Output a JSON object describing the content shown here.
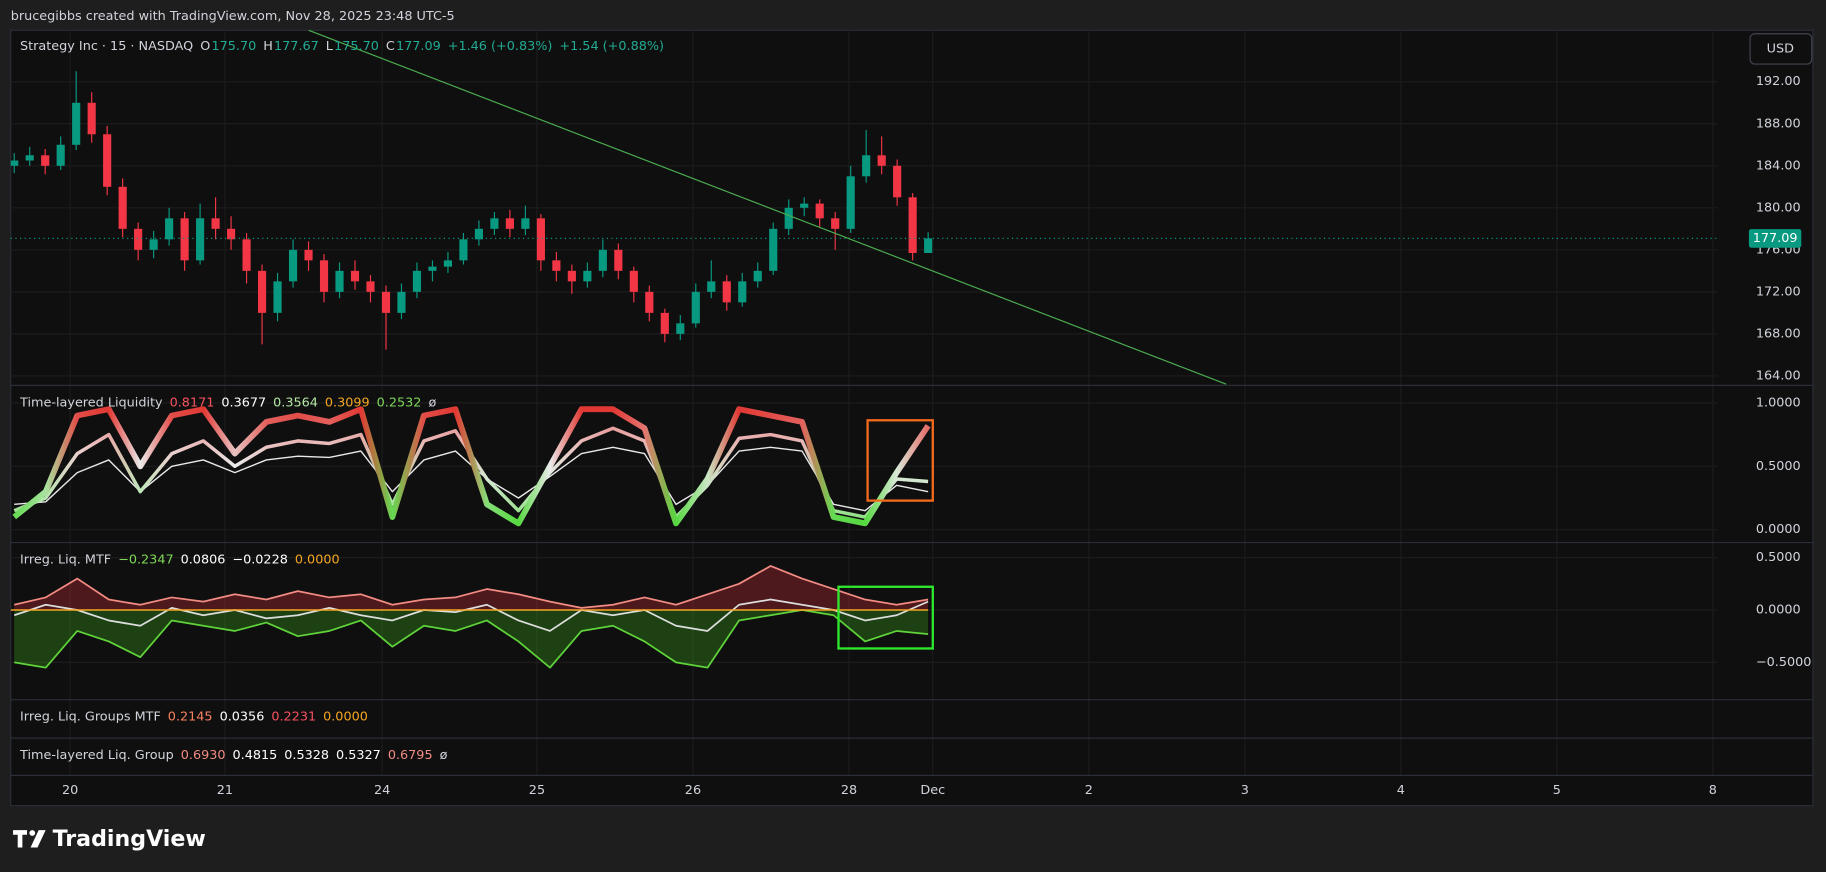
{
  "header": {
    "attribution": "brucegibbs created with TradingView.com, Nov 28, 2025 23:48 UTC-5"
  },
  "currency": "USD",
  "brand": "TradingView",
  "x_axis": {
    "labels": [
      "20",
      "21",
      "24",
      "25",
      "26",
      "28",
      "Dec",
      "2",
      "3",
      "4",
      "5",
      "8"
    ]
  },
  "chart_data": [
    {
      "type": "candlestick",
      "title": "Strategy Inc · 15 · NASDAQ",
      "ohlc_legend": [
        {
          "key": "O",
          "value": "175.70"
        },
        {
          "key": "H",
          "value": "177.67"
        },
        {
          "key": "L",
          "value": "175.70"
        },
        {
          "key": "C",
          "value": "177.09"
        }
      ],
      "change": [
        "+1.46 (+0.83%)",
        "+1.54 (+0.88%)"
      ],
      "last_price_label": "177.09",
      "up_color": "#089981",
      "down_color": "#f23645",
      "open": [
        184,
        184.5,
        185,
        184,
        186,
        190,
        187,
        182,
        178,
        176,
        177,
        179,
        175,
        179,
        178,
        177,
        174,
        170,
        173,
        176,
        175,
        172,
        174,
        173,
        172,
        170,
        172,
        174,
        174.4,
        175,
        177,
        178,
        179,
        178,
        179,
        175,
        174,
        173,
        174,
        176,
        174,
        172,
        170,
        168,
        169,
        172,
        173,
        171,
        173,
        174,
        178,
        180,
        180.4,
        179,
        178,
        183,
        185,
        184,
        181,
        175.7
      ],
      "high": [
        185.2,
        185.8,
        185.6,
        186.8,
        193,
        191,
        187.8,
        182.8,
        178.6,
        177.8,
        180,
        179.6,
        180.4,
        181,
        179.2,
        177.6,
        174.6,
        173.8,
        177,
        176.8,
        175.6,
        174.8,
        175,
        173.6,
        172.6,
        172.8,
        174.8,
        175,
        175.8,
        177.6,
        178.8,
        179.6,
        179.8,
        180.2,
        179.4,
        175.8,
        174.6,
        174.8,
        177,
        176.6,
        174.4,
        172.6,
        170.4,
        169.8,
        172.8,
        175,
        173.6,
        173.8,
        174.8,
        178.6,
        180.8,
        181,
        180.8,
        179.6,
        184,
        187.4,
        186.8,
        184.6,
        181.4,
        177.67
      ],
      "low": [
        183.3,
        184,
        183.2,
        183.6,
        185.5,
        186.2,
        181.2,
        177.2,
        175,
        175.2,
        176.4,
        174,
        174.6,
        177,
        176,
        172.8,
        167,
        169.2,
        172.4,
        174,
        171,
        171.4,
        172.2,
        171,
        166.5,
        169.4,
        171.4,
        173,
        173.8,
        174.6,
        176.4,
        177.4,
        177.2,
        177.4,
        174,
        173,
        171.8,
        172.4,
        173.4,
        173.2,
        171,
        169.2,
        167.2,
        167.4,
        168.6,
        171.4,
        170.2,
        170.6,
        172.4,
        173.6,
        177.4,
        179.2,
        178.2,
        176,
        177.6,
        182.4,
        183.2,
        180.2,
        175,
        175.7
      ],
      "close": [
        184.5,
        185,
        184,
        186,
        190,
        187,
        182,
        178,
        176,
        177,
        179,
        175,
        179,
        178,
        177,
        174,
        170,
        173,
        176,
        175,
        172,
        174,
        173,
        172,
        170,
        172,
        174,
        174.4,
        175,
        177,
        178,
        179,
        178,
        179,
        175,
        174,
        173,
        174,
        176,
        174,
        172,
        170,
        168,
        169,
        172,
        173,
        171,
        173,
        174,
        178,
        180,
        180.4,
        179,
        178,
        183,
        185,
        184,
        181,
        175.7,
        177.09
      ],
      "ylim": [
        163.1,
        196.9
      ],
      "yticks": [
        {
          "value": 192,
          "label": "192.00"
        },
        {
          "value": 188,
          "label": "188.00"
        },
        {
          "value": 184,
          "label": "184.00"
        },
        {
          "value": 180,
          "label": "180.00"
        },
        {
          "value": 176,
          "label": "176.00"
        },
        {
          "value": 172,
          "label": "172.00"
        },
        {
          "value": 168,
          "label": "168.00"
        },
        {
          "value": 164,
          "label": "164.00"
        }
      ]
    },
    {
      "type": "line",
      "title": "Time-layered Liquidity",
      "legend_values": [
        {
          "value": "0.8171",
          "color": "#f7525f"
        },
        {
          "value": "0.3677",
          "color": "#ffffff"
        },
        {
          "value": "0.3564",
          "color": "#b5e8a5"
        },
        {
          "value": "0.3099",
          "color": "#f5a623"
        },
        {
          "value": "0.2532",
          "color": "#7ed957"
        },
        {
          "value": "ø",
          "color": "#d1d4dc"
        }
      ],
      "series": [
        {
          "values": [
            0.1,
            0.3,
            0.9,
            0.95,
            0.5,
            0.9,
            0.95,
            0.6,
            0.85,
            0.9,
            0.85,
            0.95,
            0.1,
            0.9,
            0.95,
            0.2,
            0.05,
            0.5,
            0.95,
            0.95,
            0.8,
            0.05,
            0.4,
            0.95,
            0.9,
            0.85,
            0.1,
            0.05,
            0.45,
            0.82
          ]
        },
        {
          "values": [
            0.15,
            0.25,
            0.6,
            0.75,
            0.3,
            0.6,
            0.7,
            0.5,
            0.65,
            0.7,
            0.68,
            0.75,
            0.2,
            0.7,
            0.78,
            0.4,
            0.15,
            0.45,
            0.7,
            0.8,
            0.7,
            0.1,
            0.35,
            0.72,
            0.75,
            0.7,
            0.15,
            0.1,
            0.4,
            0.38
          ]
        },
        {
          "values": [
            0.2,
            0.22,
            0.45,
            0.55,
            0.3,
            0.5,
            0.55,
            0.45,
            0.55,
            0.58,
            0.57,
            0.62,
            0.3,
            0.55,
            0.62,
            0.4,
            0.25,
            0.42,
            0.6,
            0.65,
            0.6,
            0.2,
            0.35,
            0.62,
            0.65,
            0.62,
            0.2,
            0.15,
            0.35,
            0.3
          ]
        }
      ],
      "ylim": [
        -0.101,
        1.138
      ],
      "yticks": [
        {
          "value": 1,
          "label": "1.0000"
        },
        {
          "value": 0.5,
          "label": "0.5000"
        },
        {
          "value": 0,
          "label": "0.0000"
        }
      ]
    },
    {
      "type": "area",
      "title": "Irreg. Liq. MTF",
      "legend_values": [
        {
          "value": "−0.2347",
          "color": "#7ed957"
        },
        {
          "value": "0.0806",
          "color": "#ffffff"
        },
        {
          "value": "−0.0228",
          "color": "#ffffff"
        },
        {
          "value": "0.0000",
          "color": "#f5a623"
        }
      ],
      "zero_line_color": "#f5a623",
      "series": [
        {
          "color": "#f28b82",
          "fill": "rgba(242,54,69,0.28)",
          "values": [
            0.05,
            0.12,
            0.3,
            0.1,
            0.05,
            0.12,
            0.08,
            0.15,
            0.1,
            0.18,
            0.12,
            0.15,
            0.05,
            0.1,
            0.12,
            0.2,
            0.15,
            0.08,
            0.02,
            0.05,
            0.12,
            0.05,
            0.15,
            0.25,
            0.42,
            0.3,
            0.2,
            0.1,
            0.05,
            0.1
          ]
        },
        {
          "color": "#5fd33a",
          "fill": "rgba(60,160,30,0.35)",
          "values": [
            -0.5,
            -0.55,
            -0.2,
            -0.3,
            -0.45,
            -0.1,
            -0.15,
            -0.2,
            -0.12,
            -0.25,
            -0.2,
            -0.1,
            -0.35,
            -0.15,
            -0.2,
            -0.1,
            -0.3,
            -0.55,
            -0.2,
            -0.15,
            -0.3,
            -0.5,
            -0.55,
            -0.1,
            -0.05,
            0.0,
            -0.05,
            -0.3,
            -0.2,
            -0.23
          ]
        },
        {
          "color": "#dddddd",
          "values": [
            -0.05,
            0.05,
            0.0,
            -0.1,
            -0.15,
            0.02,
            -0.05,
            0.0,
            -0.08,
            -0.05,
            0.02,
            -0.05,
            -0.1,
            0.0,
            -0.02,
            0.05,
            -0.1,
            -0.2,
            0.0,
            -0.05,
            0.0,
            -0.15,
            -0.2,
            0.05,
            0.1,
            0.05,
            0.0,
            -0.1,
            -0.05,
            0.08
          ]
        }
      ],
      "ylim": [
        -0.856,
        0.644
      ],
      "yticks": [
        {
          "value": 0.5,
          "label": "0.5000"
        },
        {
          "value": 0,
          "label": "0.0000"
        },
        {
          "value": -0.5,
          "label": "−0.5000"
        }
      ]
    }
  ],
  "legends": [
    {
      "title": "Irreg. Liq. Groups MTF",
      "values": [
        {
          "value": "0.2145",
          "color": "#f7825f"
        },
        {
          "value": "0.0356",
          "color": "#ffffff"
        },
        {
          "value": "0.2231",
          "color": "#f7525f"
        },
        {
          "value": "0.0000",
          "color": "#f5a623"
        }
      ]
    },
    {
      "title": "Time-layered Liq. Group",
      "values": [
        {
          "value": "0.6930",
          "color": "#f28b82"
        },
        {
          "value": "0.4815",
          "color": "#ffffff"
        },
        {
          "value": "0.5328",
          "color": "#ffffff"
        },
        {
          "value": "0.5327",
          "color": "#ffffff"
        },
        {
          "value": "0.6795",
          "color": "#f28b82"
        },
        {
          "value": "ø",
          "color": "#d1d4dc"
        }
      ]
    }
  ]
}
